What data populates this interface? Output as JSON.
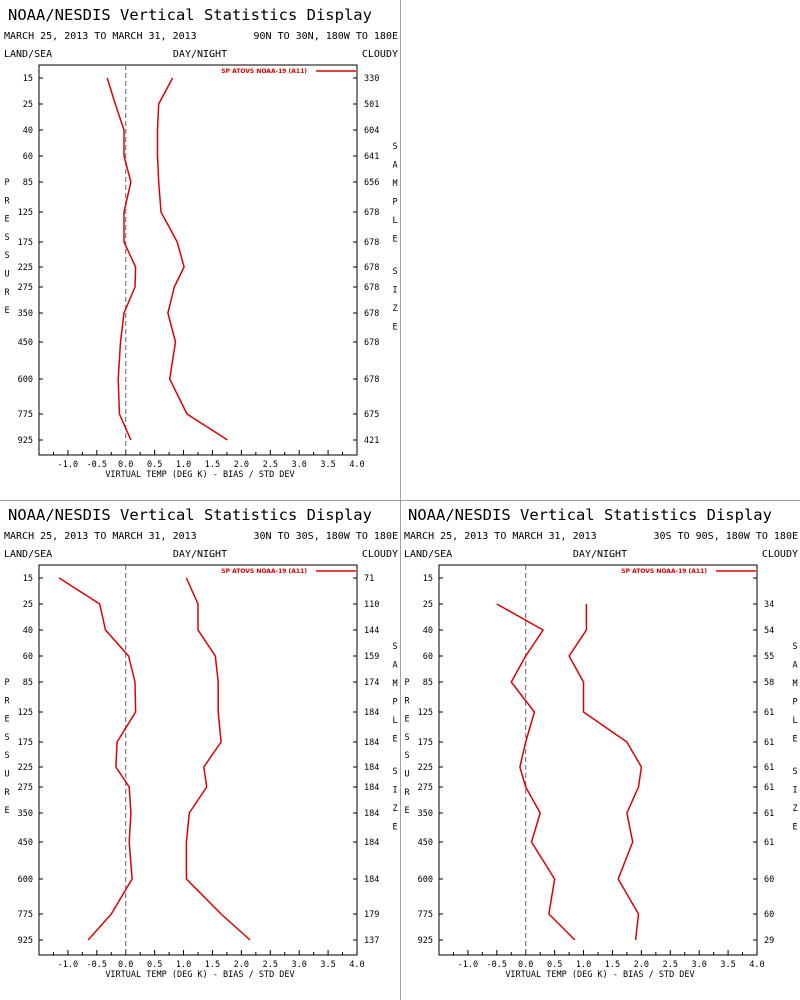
{
  "header": {
    "title": "NOAA/NESDIS Vertical Statistics Display",
    "date_range": "MARCH 25, 2013 TO MARCH 31, 2013",
    "label_left": "LAND/SEA",
    "label_center": "DAY/NIGHT",
    "label_right": "CLOUDY"
  },
  "colors": {
    "series": "#dd0000",
    "zero_line": "#606060",
    "text": "#000000"
  },
  "left_axis_label": "PRESSURE",
  "right_axis_label": "SAMPLE SIZE",
  "chart_data": [
    {
      "type": "line",
      "region": "90N TO 30N, 180W TO 180E",
      "legend": "SP ATOVS NOAA-19 (A11)",
      "xlabel": "VIRTUAL TEMP (DEG K) - BIAS / STD DEV",
      "xlim": [
        -1.5,
        4.0
      ],
      "xticks": [
        "-1.0",
        "-0.5",
        "0.0",
        "0.5",
        "1.0",
        "1.5",
        "2.0",
        "2.5",
        "3.0",
        "3.5",
        "4.0"
      ],
      "pressure_levels": [
        "15",
        "25",
        "40",
        "60",
        "85",
        "125",
        "175",
        "225",
        "275",
        "350",
        "450",
        "600",
        "775",
        "925"
      ],
      "sample_size": [
        "330",
        "501",
        "604",
        "641",
        "656",
        "678",
        "678",
        "678",
        "678",
        "678",
        "678",
        "678",
        "675",
        "421"
      ],
      "series": [
        {
          "name": "bias",
          "values": [
            -0.32,
            -0.18,
            -0.03,
            -0.03,
            0.09,
            -0.03,
            -0.03,
            0.17,
            0.16,
            -0.03,
            -0.09,
            -0.13,
            -0.11,
            0.09
          ]
        },
        {
          "name": "std dev",
          "values": [
            0.81,
            0.57,
            0.55,
            0.55,
            0.57,
            0.61,
            0.89,
            1.01,
            0.84,
            0.73,
            0.86,
            0.76,
            1.06,
            1.76
          ]
        }
      ]
    },
    {
      "type": "line",
      "region": "30N TO 30S, 180W TO 180E",
      "legend": "SP ATOVS NOAA-19 (A11)",
      "xlabel": "VIRTUAL TEMP (DEG K) - BIAS / STD DEV",
      "xlim": [
        -1.5,
        4.0
      ],
      "xticks": [
        "-1.0",
        "-0.5",
        "0.0",
        "0.5",
        "1.0",
        "1.5",
        "2.0",
        "2.5",
        "3.0",
        "3.5",
        "4.0"
      ],
      "pressure_levels": [
        "15",
        "25",
        "40",
        "60",
        "85",
        "125",
        "175",
        "225",
        "275",
        "350",
        "450",
        "600",
        "775",
        "925"
      ],
      "sample_size": [
        "71",
        "110",
        "144",
        "159",
        "174",
        "184",
        "184",
        "184",
        "184",
        "184",
        "184",
        "184",
        "179",
        "137"
      ],
      "series": [
        {
          "name": "bias",
          "values": [
            -1.15,
            -0.45,
            -0.35,
            0.05,
            0.16,
            0.17,
            -0.15,
            -0.17,
            0.06,
            0.09,
            0.06,
            0.11,
            -0.25,
            -0.65
          ]
        },
        {
          "name": "std dev",
          "values": [
            1.05,
            1.25,
            1.25,
            1.55,
            1.6,
            1.6,
            1.65,
            1.35,
            1.4,
            1.1,
            1.05,
            1.05,
            1.65,
            2.15
          ]
        }
      ]
    },
    {
      "type": "line",
      "region": "30S TO 90S, 180W TO 180E",
      "legend": "SP ATOVS NOAA-19 (A11)",
      "xlabel": "VIRTUAL TEMP (DEG K) - BIAS / STD DEV",
      "xlim": [
        -1.5,
        4.0
      ],
      "xticks": [
        "-1.0",
        "-0.5",
        "0.0",
        "0.5",
        "1.0",
        "1.5",
        "2.0",
        "2.5",
        "3.0",
        "3.5",
        "4.0"
      ],
      "pressure_levels": [
        "15",
        "25",
        "40",
        "60",
        "85",
        "125",
        "175",
        "225",
        "275",
        "350",
        "450",
        "600",
        "775",
        "925"
      ],
      "sample_size": [
        "",
        "34",
        "54",
        "55",
        "58",
        "61",
        "61",
        "61",
        "61",
        "61",
        "61",
        "60",
        "60",
        "29"
      ],
      "series": [
        {
          "name": "bias",
          "values": [
            null,
            -0.5,
            0.3,
            0.0,
            -0.25,
            0.15,
            0.0,
            -0.1,
            0.0,
            0.25,
            0.1,
            0.5,
            0.4,
            0.85
          ]
        },
        {
          "name": "std dev",
          "values": [
            null,
            1.05,
            1.05,
            0.75,
            1.0,
            1.0,
            1.75,
            2.0,
            1.95,
            1.75,
            1.85,
            1.6,
            1.95,
            1.9
          ]
        }
      ]
    }
  ]
}
